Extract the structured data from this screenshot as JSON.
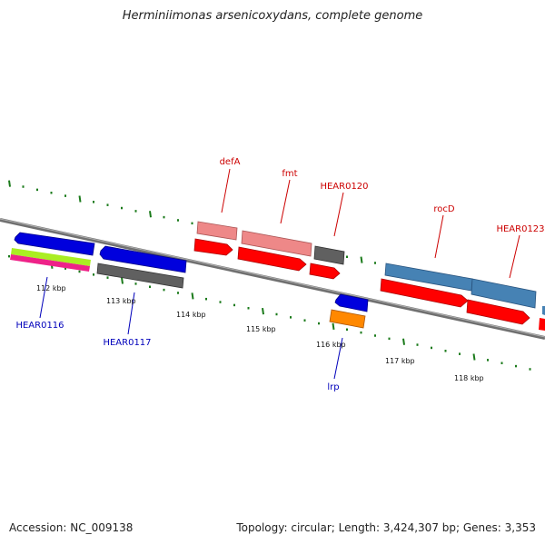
{
  "title": "Herminiimonas arsenicoxydans, complete genome",
  "footer": {
    "accession": "Accession: NC_009138",
    "summary": "Topology: circular; Length: 3,424,307 bp; Genes: 3,353"
  },
  "kbp_labels": [
    "112 kbp",
    "113 kbp",
    "114 kbp",
    "115 kbp",
    "116 kbp",
    "117 kbp",
    "118 kbp"
  ],
  "top_gene_labels": [
    "defA",
    "fmt",
    "HEAR0120",
    "rocD",
    "HEAR0123"
  ],
  "bottom_gene_labels": [
    "HEAR0116",
    "HEAR0117",
    "lrp"
  ],
  "colors": {
    "red_label": "#cc0000",
    "blue_label": "#0000bb",
    "tick": "#1a7a1a",
    "backbone": "#808080"
  }
}
